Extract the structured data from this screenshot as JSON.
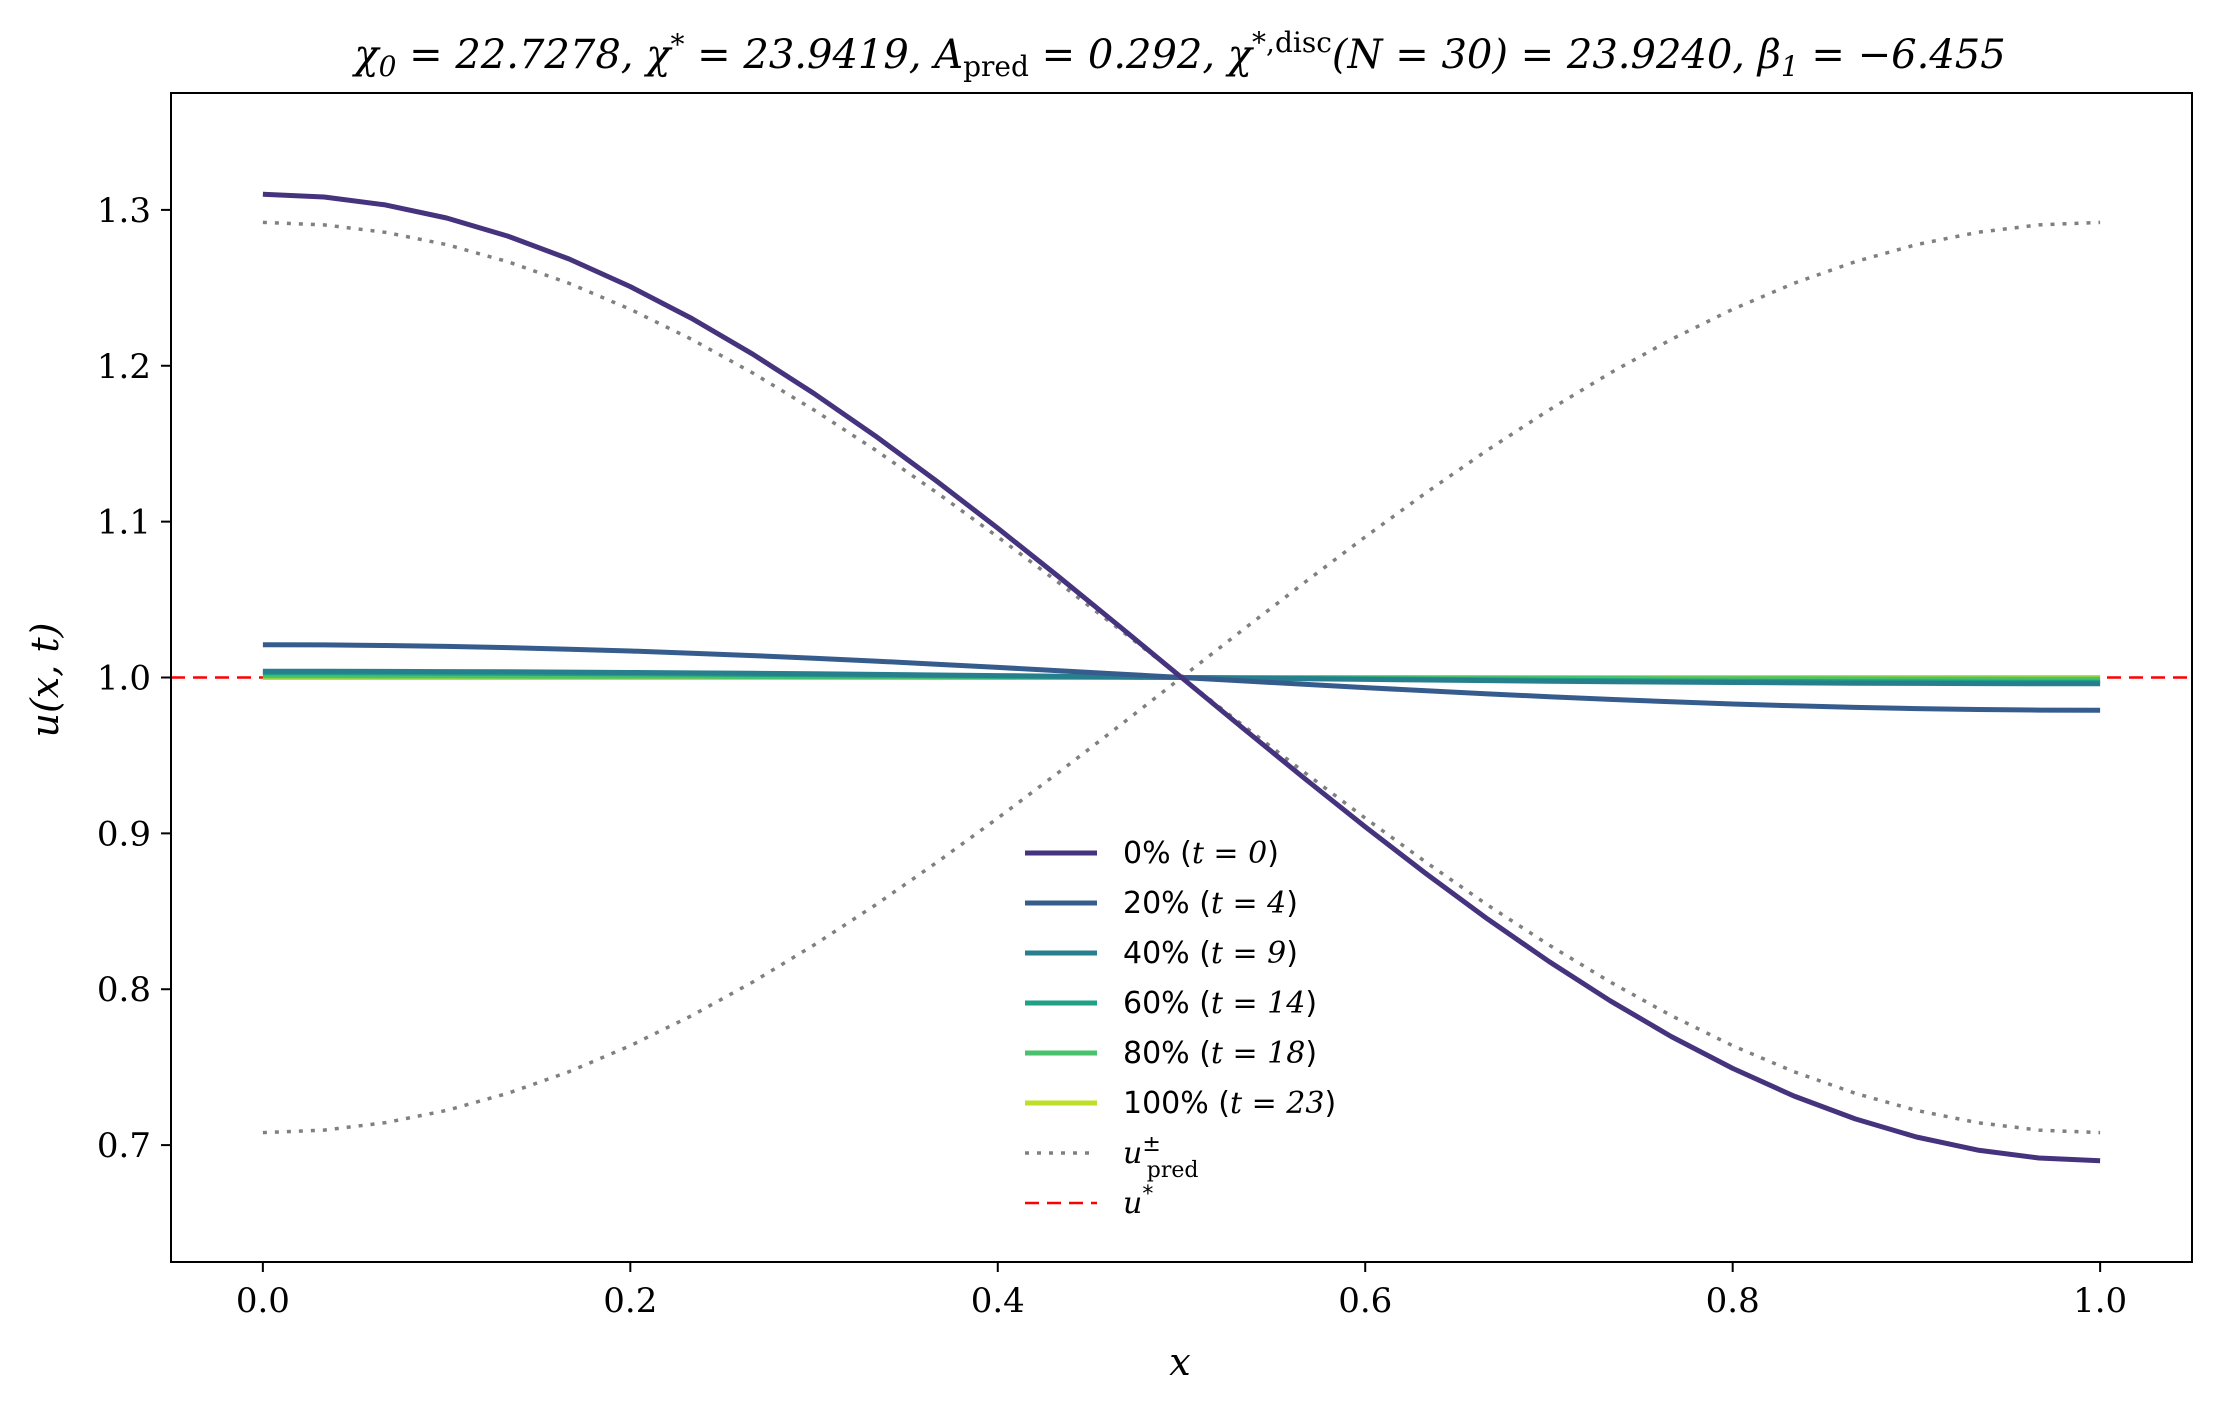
{
  "chart_data": {
    "type": "line",
    "title": "χ₀ = 22.7278,  χ* = 23.9419,  A_pred = 0.292,  χ*,disc(N = 30) = 23.9240,  β₁ = −6.455",
    "xlabel": "x",
    "ylabel": "u(x, t)",
    "xlim": [
      -0.05,
      1.05
    ],
    "ylim": [
      0.625,
      1.375
    ],
    "x_ticks": [
      "0.0",
      "0.2",
      "0.4",
      "0.6",
      "0.8",
      "1.0"
    ],
    "y_ticks": [
      "0.7",
      "0.8",
      "0.9",
      "1.0",
      "1.1",
      "1.2",
      "1.3"
    ],
    "grid": false,
    "legend_position": "lower-center",
    "series": [
      {
        "name": "0% (t = 0)",
        "kind": "cosine",
        "amplitude": 0.31,
        "color": "#46337e",
        "style": "solid"
      },
      {
        "name": "20% (t = 4)",
        "kind": "cosine",
        "amplitude": 0.021,
        "color": "#365c8d",
        "style": "solid"
      },
      {
        "name": "40% (t = 9)",
        "kind": "cosine",
        "amplitude": 0.004,
        "color": "#277f8e",
        "style": "solid"
      },
      {
        "name": "60% (t = 14)",
        "kind": "cosine",
        "amplitude": 0.003,
        "color": "#1fa187",
        "style": "solid"
      },
      {
        "name": "80% (t = 18)",
        "kind": "cosine",
        "amplitude": 0.001,
        "color": "#4ac16d",
        "style": "solid"
      },
      {
        "name": "100% (t = 23)",
        "kind": "cosine",
        "amplitude": 0.0,
        "color": "#bddf26",
        "style": "solid"
      },
      {
        "name": "u±pred",
        "kind": "cosine-pair",
        "amplitude": 0.292,
        "color": "#808080",
        "style": "dotted"
      },
      {
        "name": "u*",
        "kind": "constant",
        "value": 1.0,
        "color": "#ff0000",
        "style": "dashed"
      }
    ]
  }
}
